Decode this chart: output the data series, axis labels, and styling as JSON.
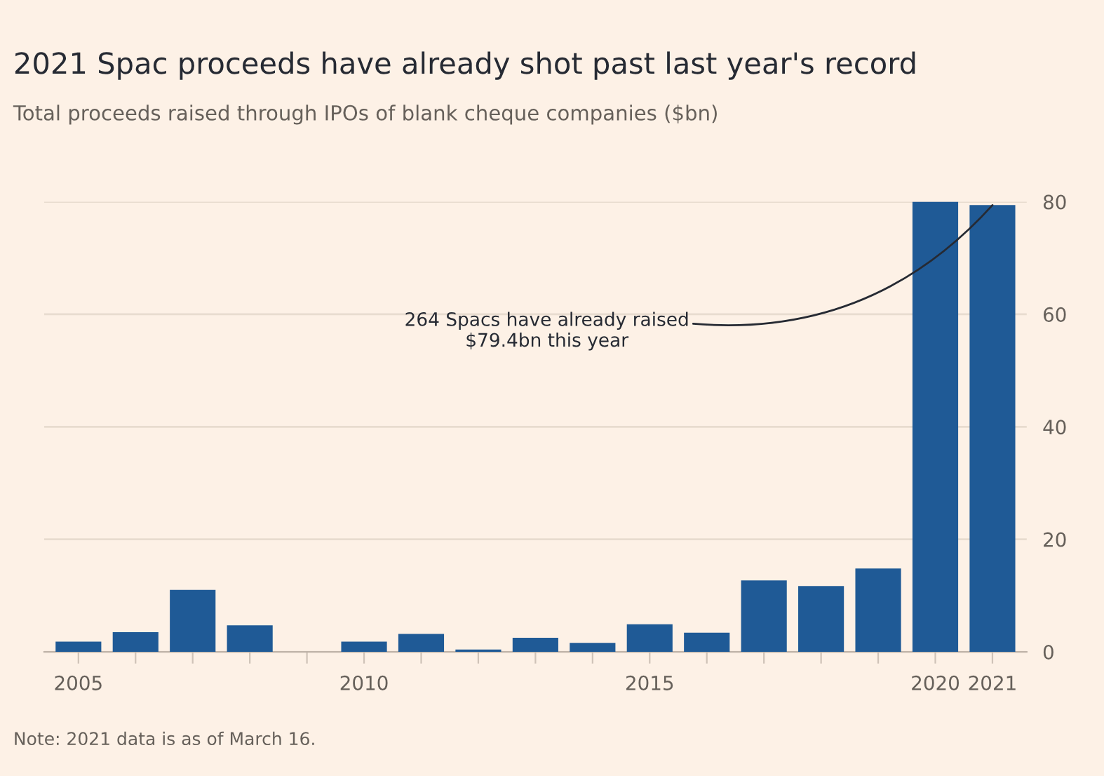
{
  "chart_data": {
    "type": "bar",
    "title": "2021 Spac proceeds have already shot past last year's record",
    "subtitle": "Total proceeds raised through IPOs of blank cheque companies ($bn)",
    "categories": [
      "2005",
      null,
      null,
      null,
      null,
      "2010",
      null,
      null,
      null,
      null,
      "2015",
      null,
      null,
      null,
      null,
      "2020",
      "2021"
    ],
    "values": [
      1.8,
      3.5,
      11,
      4.7,
      0,
      1.8,
      3.2,
      0.4,
      2.5,
      1.6,
      4.9,
      3.4,
      12.7,
      11.7,
      14.8,
      80,
      79.4
    ],
    "color": "#1f5a96",
    "ylim": [
      0,
      80
    ],
    "yticks": [
      0,
      20,
      40,
      60,
      80
    ],
    "grid": "y",
    "annotations": [
      {
        "text": "264 Spacs have already raised\n$79.4bn this year",
        "x": "2021",
        "y": 79.4
      },
      "Note: 2021 data is as of March 16."
    ]
  }
}
